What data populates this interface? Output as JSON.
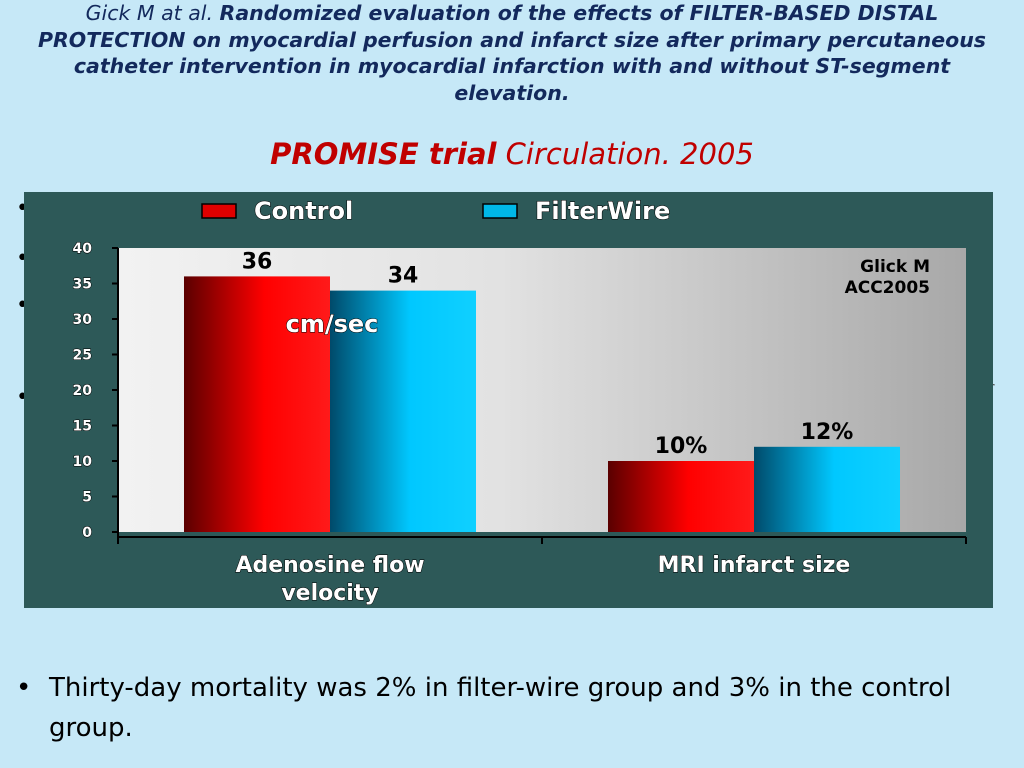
{
  "header": {
    "authors": "Gick M at al.",
    "study_title": "Randomized evaluation of the effects of FILTER-BASED DISTAL PROTECTION on myocardial perfusion and infarct size after primary percutaneous catheter intervention in myocardial infarction with and without ST-segment elevation.",
    "trial_name": "PROMISE trial",
    "journal": "Circulation. 2005"
  },
  "bullet_glyph": "•",
  "stray_char": "r",
  "chart_data": {
    "type": "bar",
    "categories": [
      "Adenosine flow velocity",
      "MRI infarct size"
    ],
    "series": [
      {
        "name": "Control",
        "values": [
          36,
          10
        ],
        "labels": [
          "36",
          "10%"
        ],
        "color": "#e00000"
      },
      {
        "name": "FilterWire",
        "values": [
          34,
          12
        ],
        "labels": [
          "34",
          "12%"
        ],
        "color": "#00b8e8"
      }
    ],
    "ylim": [
      0,
      40
    ],
    "yticks": [
      0,
      5,
      10,
      15,
      20,
      25,
      30,
      35,
      40
    ],
    "unit_annotation": "cm/sec",
    "source_annotation": [
      "Glick M",
      "ACC2005"
    ],
    "legend_position": "top",
    "grid": false
  },
  "footnote": "Thirty-day mortality was 2% in filter-wire group and 3% in the control group."
}
